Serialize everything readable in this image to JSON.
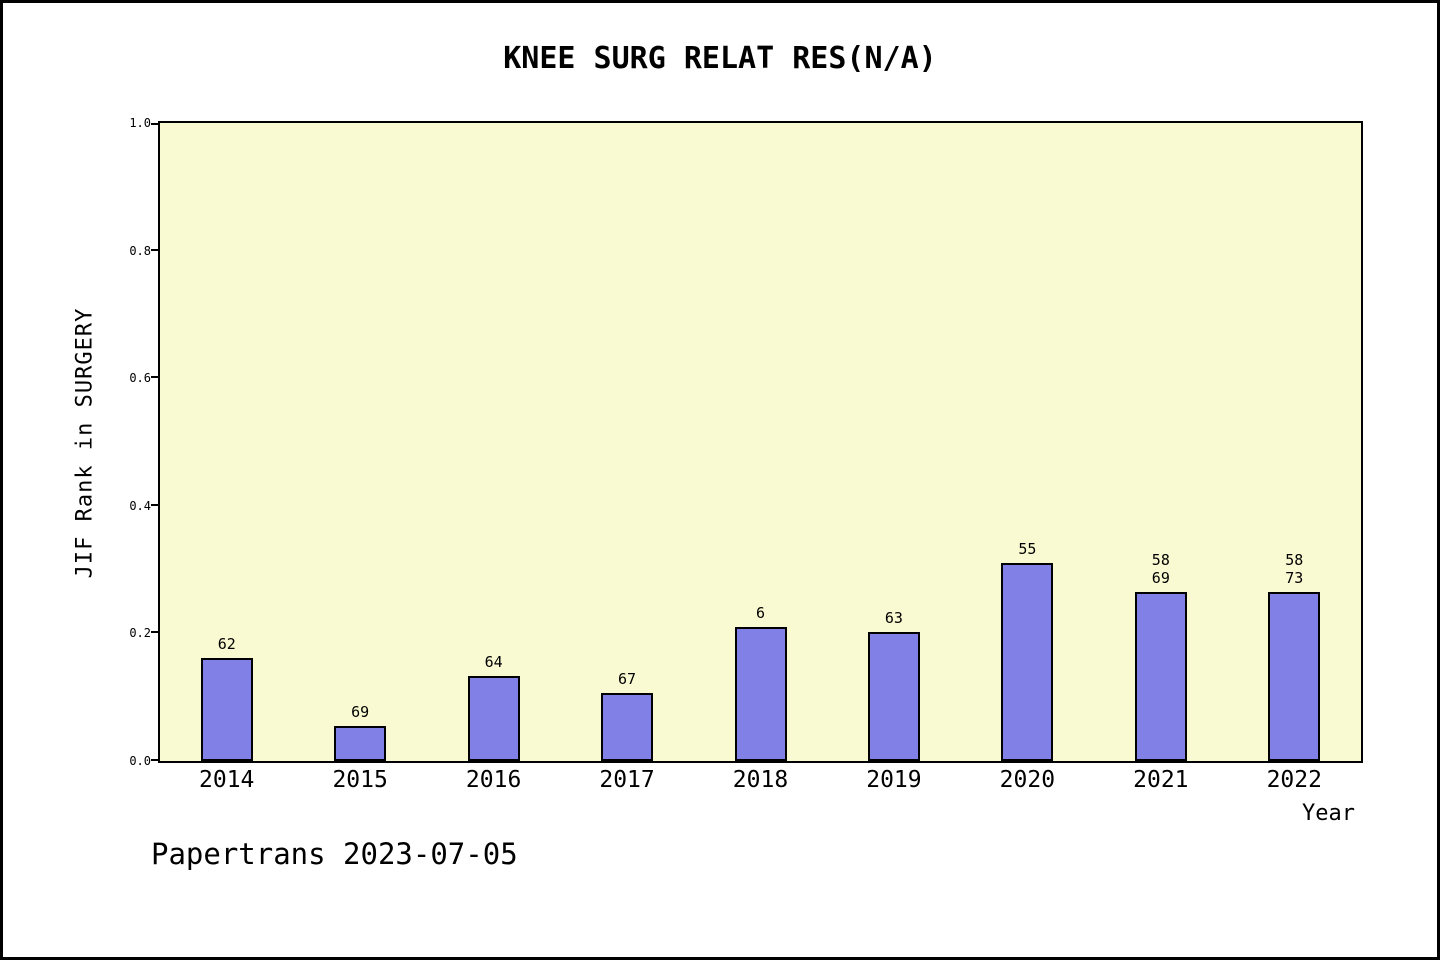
{
  "page": {
    "footer": "Papertrans 2023-07-05"
  },
  "chart_data": {
    "type": "bar",
    "title": "KNEE SURG RELAT RES(N/A)",
    "xlabel": "Year",
    "ylabel": "JIF Rank in SURGERY",
    "ylim": [
      0.0,
      1.0
    ],
    "ytick_labels": [
      "0.0",
      "0.2",
      "0.4",
      "0.6",
      "0.8",
      "1.0"
    ],
    "grid": false,
    "legend": "none",
    "plot_background": "#FAFAD2",
    "bar_color": "#8080E6",
    "bar_edge_color": "#000000",
    "categories": [
      "2014",
      "2015",
      "2016",
      "2017",
      "2018",
      "2019",
      "2020",
      "2021",
      "2022"
    ],
    "values": [
      0.162,
      0.055,
      0.134,
      0.106,
      0.21,
      0.203,
      0.31,
      0.265,
      0.265
    ],
    "bar_labels": [
      [
        "62"
      ],
      [
        "69"
      ],
      [
        "64"
      ],
      [
        "67"
      ],
      [
        "6"
      ],
      [
        "63"
      ],
      [
        "55"
      ],
      [
        "58",
        "69"
      ],
      [
        "58",
        "73"
      ]
    ]
  }
}
